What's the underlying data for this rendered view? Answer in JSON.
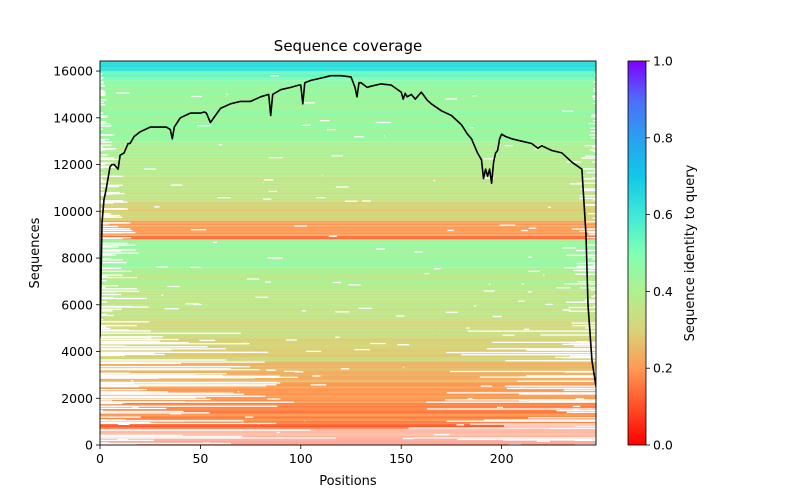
{
  "chart_data": {
    "type": "heatmap",
    "title": "Sequence coverage",
    "xlabel": "Positions",
    "ylabel": "Sequences",
    "xlim": [
      0,
      247
    ],
    "ylim": [
      0,
      16430
    ],
    "xticks": [
      0,
      50,
      100,
      150,
      200
    ],
    "xtick_labels": [
      "0",
      "50",
      "100",
      "150",
      "200"
    ],
    "yticks": [
      0,
      2000,
      4000,
      6000,
      8000,
      10000,
      12000,
      14000,
      16000
    ],
    "ytick_labels": [
      "0",
      "2000",
      "4000",
      "6000",
      "8000",
      "10000",
      "12000",
      "14000",
      "16000"
    ],
    "grid": false,
    "colorbar": {
      "label": "Sequence identity to query",
      "colormap": "rainbow_r",
      "range": [
        0.0,
        1.0
      ],
      "ticks": [
        0.0,
        0.2,
        0.4,
        0.6,
        0.8,
        1.0
      ],
      "tick_labels": [
        "0.0",
        "0.2",
        "0.4",
        "0.6",
        "0.8",
        "1.0"
      ],
      "placement": "right"
    },
    "identity_bands": [
      {
        "from": 0,
        "to": 300,
        "identity": 0.1
      },
      {
        "from": 300,
        "to": 900,
        "identity": 0.14
      },
      {
        "from": 900,
        "to": 1800,
        "identity": 0.18
      },
      {
        "from": 1800,
        "to": 2700,
        "identity": 0.21
      },
      {
        "from": 2700,
        "to": 3600,
        "identity": 0.25
      },
      {
        "from": 3600,
        "to": 4600,
        "identity": 0.3
      },
      {
        "from": 4600,
        "to": 5600,
        "identity": 0.33
      },
      {
        "from": 5600,
        "to": 6600,
        "identity": 0.36
      },
      {
        "from": 6600,
        "to": 7600,
        "identity": 0.4
      },
      {
        "from": 7600,
        "to": 8800,
        "identity": 0.45
      },
      {
        "from": 8800,
        "to": 8950,
        "identity": 0.12
      },
      {
        "from": 8950,
        "to": 9600,
        "identity": 0.22
      },
      {
        "from": 9600,
        "to": 10400,
        "identity": 0.3
      },
      {
        "from": 10400,
        "to": 11500,
        "identity": 0.35
      },
      {
        "from": 11500,
        "to": 13000,
        "identity": 0.4
      },
      {
        "from": 13000,
        "to": 15600,
        "identity": 0.45
      },
      {
        "from": 15600,
        "to": 16000,
        "identity": 0.52
      },
      {
        "from": 16000,
        "to": 16430,
        "identity": 0.62
      }
    ],
    "coverage_line": {
      "name": "coverage",
      "color": "#000000",
      "x": [
        0,
        1,
        2,
        3,
        5,
        6,
        7,
        9,
        10,
        12,
        14,
        15,
        17,
        20,
        25,
        30,
        33,
        35,
        36,
        37,
        40,
        45,
        50,
        52,
        53,
        55,
        60,
        65,
        70,
        75,
        80,
        84,
        85,
        86,
        88,
        90,
        95,
        99,
        100,
        101,
        102,
        105,
        110,
        115,
        120,
        125,
        127,
        128,
        129,
        130,
        133,
        135,
        140,
        145,
        150,
        151,
        152,
        153,
        155,
        157,
        160,
        163,
        165,
        170,
        175,
        180,
        183,
        185,
        188,
        190,
        191,
        192,
        193,
        194,
        195,
        196,
        197,
        198,
        199,
        200,
        202,
        205,
        210,
        215,
        218,
        220,
        225,
        230,
        235,
        240,
        242,
        243,
        245,
        247
      ],
      "y": [
        4600,
        9500,
        10500,
        10900,
        11900,
        12000,
        12000,
        11800,
        12400,
        12500,
        12900,
        12900,
        13200,
        13400,
        13600,
        13600,
        13600,
        13500,
        13100,
        13600,
        14000,
        14200,
        14200,
        14250,
        14200,
        13800,
        14400,
        14600,
        14700,
        14700,
        14900,
        15000,
        14100,
        15000,
        15100,
        15200,
        15300,
        15400,
        15400,
        14600,
        15500,
        15600,
        15700,
        15800,
        15800,
        15750,
        15300,
        14900,
        15500,
        15500,
        15300,
        15350,
        15450,
        15400,
        15100,
        14800,
        15050,
        14900,
        15000,
        14800,
        15100,
        14750,
        14600,
        14300,
        14100,
        13700,
        13300,
        13100,
        12500,
        12200,
        11400,
        11800,
        11500,
        11800,
        11200,
        12100,
        12500,
        12600,
        13100,
        13300,
        13200,
        13100,
        13000,
        12900,
        12700,
        12800,
        12600,
        12500,
        12100,
        11800,
        9000,
        6000,
        3600,
        2500
      ]
    }
  }
}
